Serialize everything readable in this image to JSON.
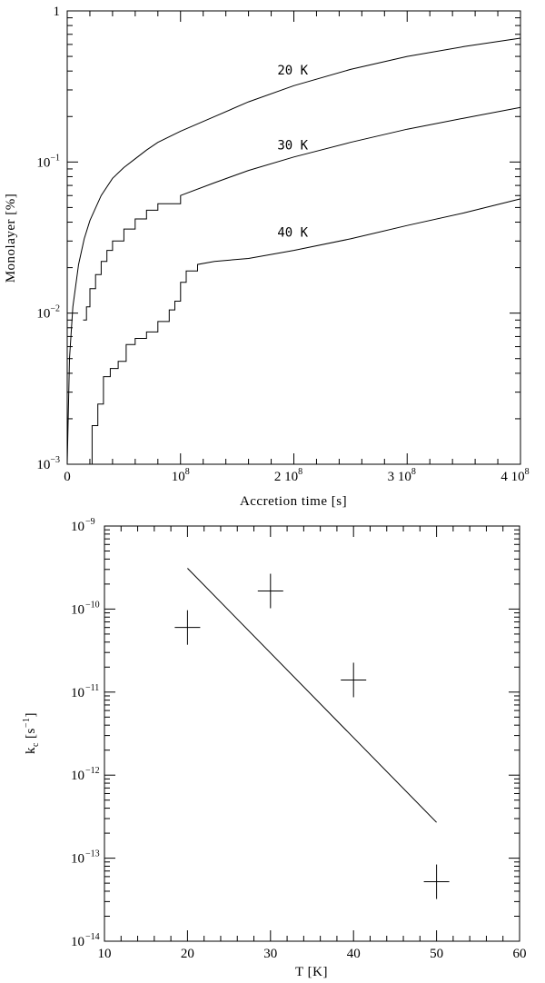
{
  "chart_data": [
    {
      "type": "line",
      "xlabel": "Accretion time [s]",
      "ylabel": "Monolayer [%]",
      "xlim": [
        0,
        400000000
      ],
      "ylim": [
        0.001,
        1
      ],
      "yscale": "log",
      "x_tick_labels": [
        {
          "value": 0,
          "mant": "0",
          "exp": ""
        },
        {
          "value": 100000000,
          "mant": "10",
          "exp": "8"
        },
        {
          "value": 200000000,
          "mant": "2 10",
          "exp": "8"
        },
        {
          "value": 300000000,
          "mant": "3 10",
          "exp": "8"
        },
        {
          "value": 400000000,
          "mant": "4 10",
          "exp": "8"
        }
      ],
      "y_tick_labels": [
        {
          "value": 1,
          "mant": "1",
          "exp": ""
        },
        {
          "value": 0.1,
          "mant": "10",
          "exp": "−1"
        },
        {
          "value": 0.01,
          "mant": "10",
          "exp": "−2"
        },
        {
          "value": 0.001,
          "mant": "10",
          "exp": "−3"
        }
      ],
      "series": [
        {
          "name": "20 K",
          "x": [
            0,
            2000000,
            5000000,
            10000000,
            15000000,
            20000000,
            30000000,
            40000000,
            50000000,
            60000000,
            70000000,
            80000000,
            100000000,
            130000000,
            160000000,
            200000000,
            250000000,
            300000000,
            350000000,
            400000000
          ],
          "y": [
            0.001,
            0.005,
            0.011,
            0.021,
            0.031,
            0.041,
            0.06,
            0.078,
            0.092,
            0.105,
            0.12,
            0.135,
            0.16,
            0.2,
            0.25,
            0.32,
            0.41,
            0.5,
            0.58,
            0.66
          ]
        },
        {
          "name": "30 K",
          "x": [
            14000000,
            17000000,
            20000000,
            25000000,
            30000000,
            35000000,
            40000000,
            50000000,
            60000000,
            70000000,
            80000000,
            100000000,
            130000000,
            160000000,
            200000000,
            250000000,
            300000000,
            350000000,
            400000000
          ],
          "y": [
            0.009,
            0.011,
            0.0145,
            0.018,
            0.022,
            0.026,
            0.03,
            0.036,
            0.042,
            0.048,
            0.053,
            0.06,
            0.073,
            0.088,
            0.108,
            0.135,
            0.165,
            0.195,
            0.23
          ]
        },
        {
          "name": "40 K",
          "x": [
            18000000,
            22000000,
            27000000,
            32000000,
            38000000,
            45000000,
            52000000,
            60000000,
            70000000,
            80000000,
            90000000,
            95000000,
            100000000,
            105000000,
            115000000,
            130000000,
            160000000,
            200000000,
            250000000,
            300000000,
            350000000,
            400000000
          ],
          "y": [
            0.001,
            0.0018,
            0.0025,
            0.0038,
            0.0043,
            0.0048,
            0.0062,
            0.0068,
            0.0075,
            0.0088,
            0.0105,
            0.012,
            0.016,
            0.019,
            0.021,
            0.022,
            0.023,
            0.026,
            0.031,
            0.038,
            0.046,
            0.057
          ]
        }
      ]
    },
    {
      "type": "scatter",
      "xlabel": "T [K]",
      "ylabel_main": "k",
      "ylabel_sub": "c",
      "ylabel_open": "[s",
      "ylabel_sup": "−1",
      "ylabel_close": "]",
      "xlim": [
        10,
        60
      ],
      "ylim": [
        1e-14,
        1e-09
      ],
      "yscale": "log",
      "x_tick_labels": [
        {
          "value": 10,
          "text": "10"
        },
        {
          "value": 20,
          "text": "20"
        },
        {
          "value": 30,
          "text": "30"
        },
        {
          "value": 40,
          "text": "40"
        },
        {
          "value": 50,
          "text": "50"
        },
        {
          "value": 60,
          "text": "60"
        }
      ],
      "y_tick_labels": [
        {
          "value": 1e-09,
          "mant": "10",
          "exp": "−9"
        },
        {
          "value": 1e-10,
          "mant": "10",
          "exp": "−10"
        },
        {
          "value": 1e-11,
          "mant": "10",
          "exp": "−11"
        },
        {
          "value": 1e-12,
          "mant": "10",
          "exp": "−12"
        },
        {
          "value": 1e-13,
          "mant": "10",
          "exp": "−13"
        },
        {
          "value": 1e-14,
          "mant": "10",
          "exp": "−14"
        }
      ],
      "points": [
        {
          "x": 20,
          "y": 6e-11
        },
        {
          "x": 30,
          "y": 1.65e-10
        },
        {
          "x": 40,
          "y": 1.4e-11
        },
        {
          "x": 50,
          "y": 5.2e-14
        }
      ],
      "fit_line": {
        "x": [
          20,
          50
        ],
        "y": [
          3.1e-10,
          2.7e-13
        ]
      }
    }
  ]
}
